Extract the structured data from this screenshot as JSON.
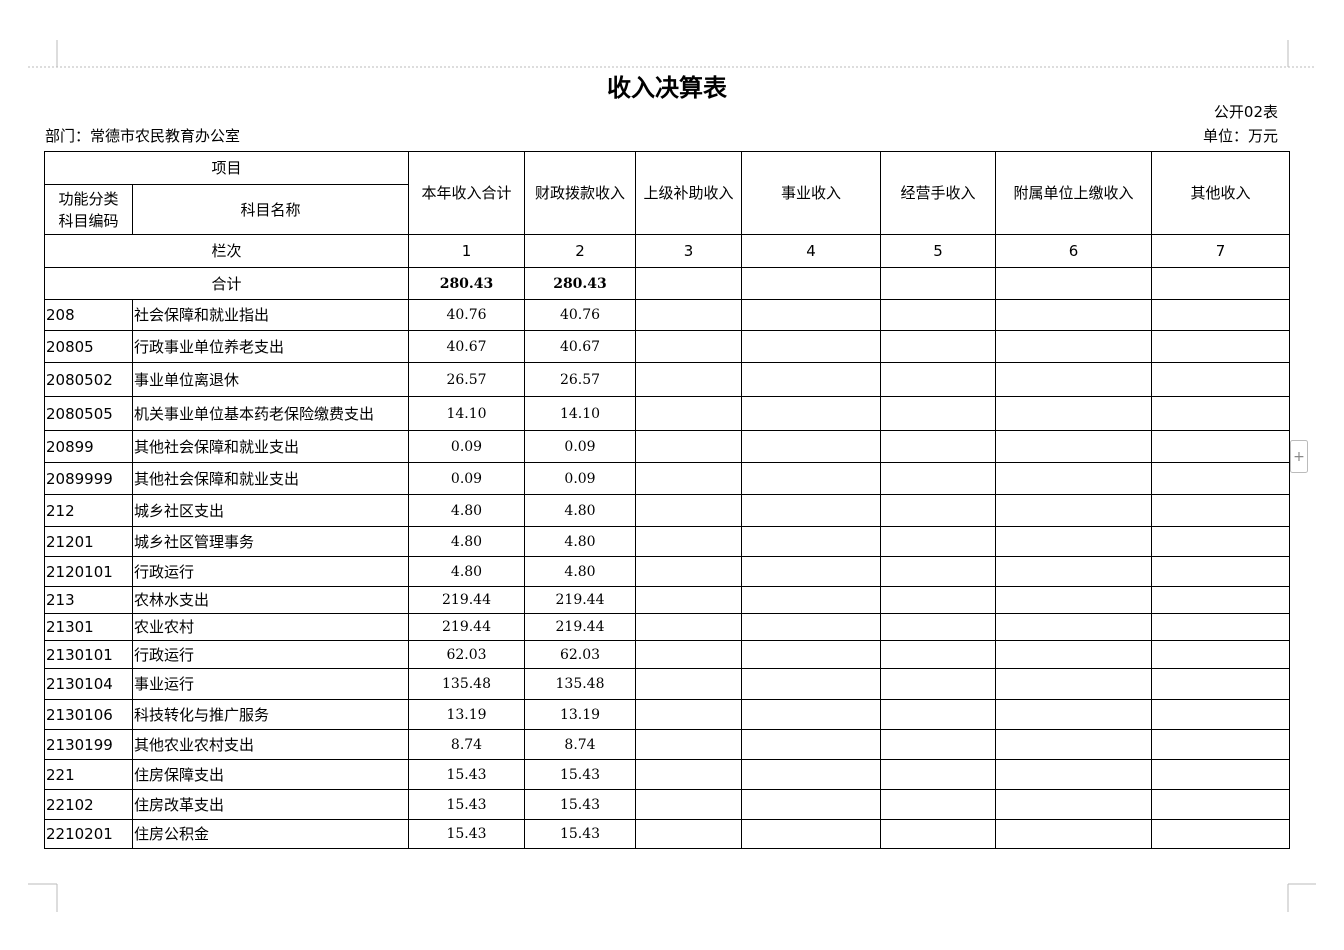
{
  "title": "收入决算表",
  "form_no": "公开02表",
  "department": "部门：常德市农民教育办公室",
  "unit": "单位：万元",
  "table": {
    "header": {
      "item": "项目",
      "code": "功能分类科目编码",
      "name": "科目名称",
      "columns": [
        "本年收入合计",
        "财政拨款收入",
        "上级补助收入",
        "事业收入",
        "经营手收入",
        "附属单位上缴收入",
        "其他收入"
      ]
    },
    "index_row": {
      "label": "栏次",
      "numbers": [
        "1",
        "2",
        "3",
        "4",
        "5",
        "6",
        "7"
      ]
    },
    "total": {
      "label": "合计",
      "values": [
        "280.43",
        "280.43"
      ]
    },
    "rows": [
      [
        "208",
        "社会保障和就业指出",
        "40.76",
        "40.76"
      ],
      [
        "20805",
        "行政事业单位养老支出",
        "40.67",
        "40.67"
      ],
      [
        "2080502",
        "事业单位离退休",
        "26.57",
        "26.57"
      ],
      [
        "2080505",
        "机关事业单位基本药老保险缴费支出",
        "14.10",
        "14.10"
      ],
      [
        "20899",
        "其他社会保障和就业支出",
        "0.09",
        "0.09"
      ],
      [
        "2089999",
        "其他社会保障和就业支出",
        "0.09",
        "0.09"
      ],
      [
        "212",
        "城乡社区支出",
        "4.80",
        "4.80"
      ],
      [
        "21201",
        "城乡社区管理事务",
        "4.80",
        "4.80"
      ],
      [
        "2120101",
        "行政运行",
        "4.80",
        "4.80"
      ],
      [
        "213",
        "农林水支出",
        "219.44",
        "219.44"
      ],
      [
        "21301",
        "农业农村",
        "219.44",
        "219.44"
      ],
      [
        "2130101",
        "行政运行",
        "62.03",
        "62.03"
      ],
      [
        "2130104",
        "事业运行",
        "135.48",
        "135.48"
      ],
      [
        "2130106",
        "科技转化与推广服务",
        "13.19",
        "13.19"
      ],
      [
        "2130199",
        "其他农业农村支出",
        "8.74",
        "8.74"
      ],
      [
        "221",
        "住房保障支出",
        "15.43",
        "15.43"
      ],
      [
        "22102",
        "住房改革支出",
        "15.43",
        "15.43"
      ],
      [
        "2210201",
        "住房公积金",
        "15.43",
        "15.43"
      ]
    ]
  }
}
